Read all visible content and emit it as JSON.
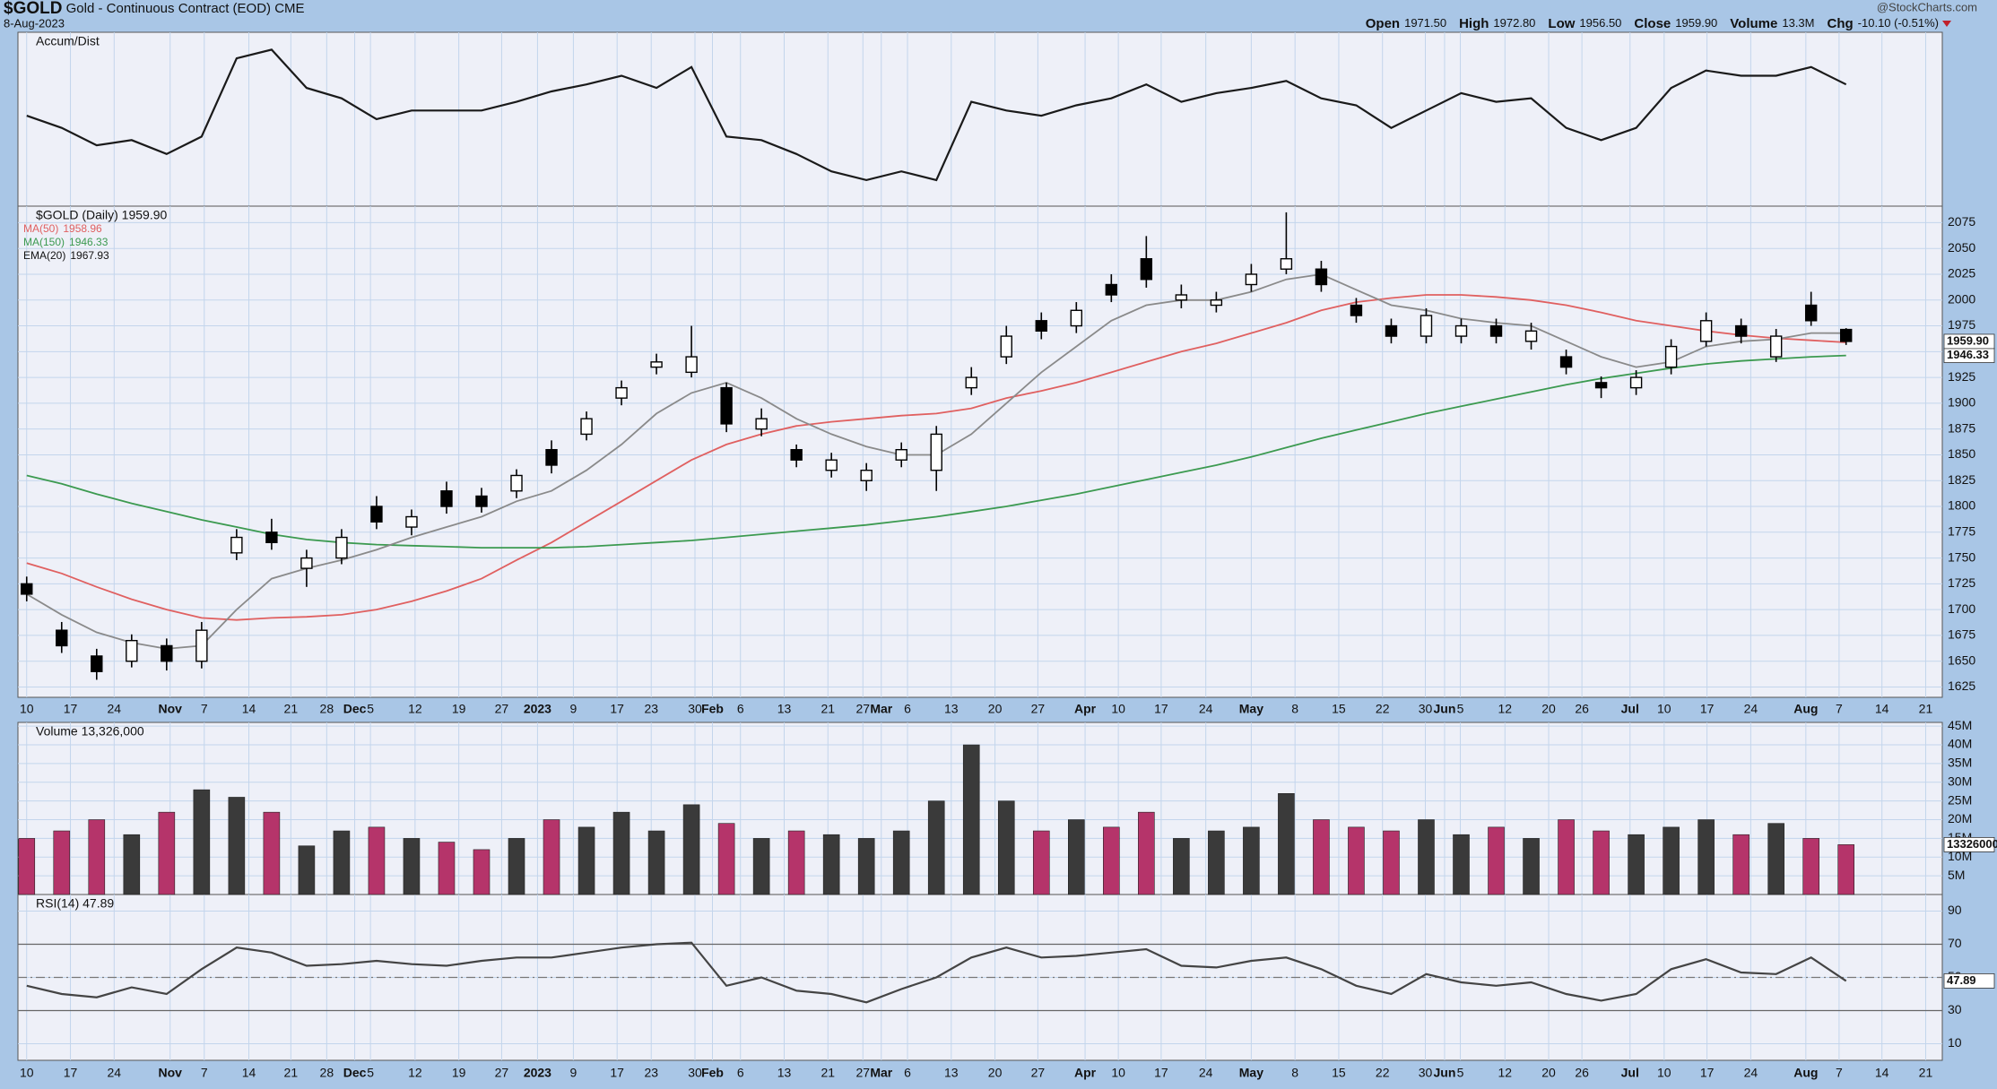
{
  "header": {
    "symbol": "$GOLD",
    "name": "Gold - Continuous Contract (EOD)",
    "exchange": "CME",
    "date": "8-Aug-2023",
    "stats": [
      {
        "label": "Open",
        "value": "1971.50"
      },
      {
        "label": "High",
        "value": "1972.80"
      },
      {
        "label": "Low",
        "value": "1956.50"
      },
      {
        "label": "Close",
        "value": "1959.90"
      },
      {
        "label": "Volume",
        "value": "13.3M"
      },
      {
        "label": "Chg",
        "value": "-10.10 (-0.51%)"
      }
    ],
    "source": "@StockCharts.com"
  },
  "chart_data": [
    {
      "type": "line",
      "title": "Accum/Dist",
      "color": "#1a1a1a",
      "ylim": [
        0,
        100
      ],
      "values": [
        52,
        45,
        35,
        38,
        30,
        40,
        85,
        90,
        68,
        62,
        50,
        55,
        55,
        55,
        60,
        66,
        70,
        75,
        68,
        80,
        40,
        38,
        30,
        20,
        15,
        20,
        15,
        60,
        55,
        52,
        58,
        62,
        70,
        60,
        65,
        68,
        72,
        62,
        58,
        45,
        55,
        65,
        60,
        62,
        45,
        38,
        45,
        68,
        78,
        75,
        75,
        80,
        70
      ]
    },
    {
      "type": "candlestick",
      "title": "$GOLD (Daily) 1959.90",
      "last_label": "1959.90",
      "x": [
        1,
        5,
        9,
        13,
        17,
        21,
        25,
        29,
        33,
        37,
        41,
        45,
        49,
        53,
        57,
        61,
        65,
        69,
        73,
        77,
        81,
        85,
        89,
        93,
        97,
        101,
        105,
        109,
        113,
        117,
        121,
        125,
        129,
        133,
        137,
        141,
        145,
        149,
        153,
        157,
        161,
        165,
        169,
        173,
        177,
        181,
        185,
        189,
        193,
        197,
        201,
        205,
        209
      ],
      "open": [
        1725,
        1680,
        1655,
        1650,
        1665,
        1650,
        1755,
        1775,
        1740,
        1750,
        1800,
        1780,
        1815,
        1810,
        1815,
        1855,
        1870,
        1905,
        1935,
        1930,
        1915,
        1875,
        1855,
        1835,
        1825,
        1845,
        1835,
        1915,
        1945,
        1980,
        1975,
        2015,
        2040,
        2000,
        1995,
        2015,
        2030,
        2030,
        1995,
        1975,
        1965,
        1965,
        1975,
        1960,
        1945,
        1920,
        1915,
        1935,
        1960,
        1975,
        1945,
        1995,
        1971.5
      ],
      "high": [
        1732,
        1688,
        1662,
        1676,
        1672,
        1688,
        1778,
        1788,
        1758,
        1778,
        1810,
        1797,
        1824,
        1818,
        1836,
        1864,
        1892,
        1922,
        1948,
        1975,
        1920,
        1895,
        1860,
        1852,
        1842,
        1862,
        1878,
        1935,
        1975,
        1988,
        1998,
        2025,
        2062,
        2015,
        2008,
        2035,
        2085,
        2038,
        2002,
        1982,
        1992,
        1982,
        1982,
        1978,
        1952,
        1926,
        1932,
        1962,
        1988,
        1982,
        1972,
        2008,
        1972.8
      ],
      "low": [
        1708,
        1658,
        1632,
        1644,
        1641,
        1643,
        1748,
        1758,
        1722,
        1744,
        1778,
        1772,
        1793,
        1794,
        1808,
        1832,
        1864,
        1898,
        1928,
        1925,
        1872,
        1868,
        1838,
        1828,
        1815,
        1838,
        1815,
        1908,
        1938,
        1962,
        1968,
        1998,
        2012,
        1992,
        1988,
        2008,
        2025,
        2008,
        1978,
        1958,
        1958,
        1958,
        1958,
        1952,
        1928,
        1905,
        1908,
        1928,
        1955,
        1958,
        1940,
        1975,
        1956.5
      ],
      "close": [
        1715,
        1665,
        1640,
        1670,
        1650,
        1680,
        1770,
        1765,
        1750,
        1770,
        1785,
        1790,
        1800,
        1800,
        1830,
        1840,
        1885,
        1915,
        1940,
        1945,
        1880,
        1885,
        1845,
        1845,
        1835,
        1855,
        1870,
        1925,
        1965,
        1970,
        1990,
        2005,
        2020,
        2005,
        2000,
        2025,
        2040,
        2015,
        1985,
        1965,
        1985,
        1975,
        1965,
        1970,
        1935,
        1915,
        1925,
        1955,
        1980,
        1965,
        1965,
        1980,
        1959.9
      ],
      "series": [
        {
          "name": "MA(50)",
          "color": "#e06060",
          "values": [
            1745,
            1735,
            1722,
            1710,
            1700,
            1692,
            1690,
            1692,
            1693,
            1695,
            1700,
            1708,
            1718,
            1730,
            1748,
            1765,
            1785,
            1805,
            1825,
            1845,
            1860,
            1870,
            1878,
            1882,
            1885,
            1888,
            1890,
            1895,
            1905,
            1912,
            1920,
            1930,
            1940,
            1950,
            1958,
            1968,
            1978,
            1990,
            1998,
            2002,
            2005,
            2005,
            2003,
            2000,
            1995,
            1988,
            1980,
            1975,
            1970,
            1966,
            1963,
            1961,
            1958.96
          ]
        },
        {
          "name": "MA(150)",
          "color": "#3c9a50",
          "values": [
            1830,
            1822,
            1812,
            1803,
            1795,
            1787,
            1780,
            1773,
            1768,
            1765,
            1763,
            1762,
            1761,
            1760,
            1760,
            1760,
            1761,
            1763,
            1765,
            1767,
            1770,
            1773,
            1776,
            1779,
            1782,
            1786,
            1790,
            1795,
            1800,
            1806,
            1812,
            1819,
            1826,
            1833,
            1840,
            1848,
            1857,
            1866,
            1874,
            1882,
            1890,
            1897,
            1904,
            1911,
            1918,
            1924,
            1929,
            1934,
            1938,
            1941,
            1943,
            1945,
            1946.33
          ]
        },
        {
          "name": "EMA(20)",
          "color": "#8a8a8a",
          "values": [
            1715,
            1695,
            1678,
            1668,
            1662,
            1665,
            1700,
            1730,
            1740,
            1748,
            1758,
            1770,
            1780,
            1790,
            1805,
            1815,
            1835,
            1860,
            1890,
            1910,
            1920,
            1905,
            1885,
            1870,
            1858,
            1850,
            1850,
            1870,
            1900,
            1930,
            1955,
            1980,
            1995,
            2000,
            2000,
            2008,
            2020,
            2025,
            2010,
            1995,
            1990,
            1982,
            1978,
            1975,
            1960,
            1945,
            1935,
            1940,
            1955,
            1960,
            1962,
            1968,
            1967.93
          ]
        }
      ],
      "xlim": [
        0,
        220
      ],
      "xticks": [
        {
          "value": 1,
          "label": "10"
        },
        {
          "value": 6,
          "label": "17"
        },
        {
          "value": 11,
          "label": "24"
        },
        {
          "value": 17.4,
          "label": "Nov"
        },
        {
          "value": 21.3,
          "label": "7"
        },
        {
          "value": 26.4,
          "label": "14"
        },
        {
          "value": 31.2,
          "label": "21"
        },
        {
          "value": 35.3,
          "label": "28"
        },
        {
          "value": 38.5,
          "label": "Dec"
        },
        {
          "value": 40.3,
          "label": "5"
        },
        {
          "value": 45.4,
          "label": "12"
        },
        {
          "value": 50.4,
          "label": "19"
        },
        {
          "value": 55.3,
          "label": "27"
        },
        {
          "value": 59.4,
          "label": "2023"
        },
        {
          "value": 63.5,
          "label": "9"
        },
        {
          "value": 68.5,
          "label": "17"
        },
        {
          "value": 72.4,
          "label": "23"
        },
        {
          "value": 77.4,
          "label": "30"
        },
        {
          "value": 79.4,
          "label": "Feb"
        },
        {
          "value": 82.6,
          "label": "6"
        },
        {
          "value": 87.6,
          "label": "13"
        },
        {
          "value": 92.6,
          "label": "21"
        },
        {
          "value": 96.6,
          "label": "27"
        },
        {
          "value": 98.7,
          "label": "Mar"
        },
        {
          "value": 101.7,
          "label": "6"
        },
        {
          "value": 106.7,
          "label": "13"
        },
        {
          "value": 111.7,
          "label": "20"
        },
        {
          "value": 116.6,
          "label": "27"
        },
        {
          "value": 122,
          "label": "Apr"
        },
        {
          "value": 125.8,
          "label": "10"
        },
        {
          "value": 130.7,
          "label": "17"
        },
        {
          "value": 135.8,
          "label": "24"
        },
        {
          "value": 141,
          "label": "May"
        },
        {
          "value": 146,
          "label": "8"
        },
        {
          "value": 151,
          "label": "15"
        },
        {
          "value": 156,
          "label": "22"
        },
        {
          "value": 160.9,
          "label": "30"
        },
        {
          "value": 163.1,
          "label": "Jun"
        },
        {
          "value": 164.9,
          "label": "5"
        },
        {
          "value": 170,
          "label": "12"
        },
        {
          "value": 175,
          "label": "20"
        },
        {
          "value": 178.8,
          "label": "26"
        },
        {
          "value": 184.3,
          "label": "Jul"
        },
        {
          "value": 188.2,
          "label": "10"
        },
        {
          "value": 193.1,
          "label": "17"
        },
        {
          "value": 198.1,
          "label": "24"
        },
        {
          "value": 204.4,
          "label": "Aug"
        },
        {
          "value": 208.2,
          "label": "7"
        },
        {
          "value": 213.1,
          "label": "14"
        },
        {
          "value": 218.1,
          "label": "21"
        }
      ],
      "ylim": [
        1615,
        2091
      ],
      "yticks": [
        1625,
        1650,
        1675,
        1700,
        1725,
        1750,
        1775,
        1800,
        1825,
        1850,
        1875,
        1900,
        1925,
        1950,
        1975,
        2000,
        2025,
        2050,
        2075
      ],
      "grid": true
    },
    {
      "type": "bar",
      "title": "Volume 13,326,000",
      "last_label": "13326000",
      "up_color": "#3a3a3a",
      "down_color": "#b5346a",
      "values": [
        15,
        17,
        20,
        16,
        22,
        28,
        26,
        22,
        13,
        17,
        18,
        15,
        14,
        12,
        15,
        20,
        18,
        22,
        17,
        24,
        19,
        15,
        17,
        16,
        15,
        17,
        25,
        40,
        25,
        17,
        20,
        18,
        22,
        15,
        17,
        18,
        27,
        20,
        18,
        17,
        20,
        16,
        18,
        15,
        20,
        17,
        16,
        18,
        20,
        16,
        19,
        15,
        13.326
      ],
      "ylim": [
        0,
        46
      ],
      "yticks": [
        {
          "value": 5,
          "label": "5M"
        },
        {
          "value": 10,
          "label": "10M"
        },
        {
          "value": 15,
          "label": "15M"
        },
        {
          "value": 20,
          "label": "20M"
        },
        {
          "value": 25,
          "label": "25M"
        },
        {
          "value": 30,
          "label": "30M"
        },
        {
          "value": 35,
          "label": "35M"
        },
        {
          "value": 40,
          "label": "40M"
        },
        {
          "value": 45,
          "label": "45M"
        }
      ]
    },
    {
      "type": "line",
      "title": "RSI(14) 47.89",
      "color": "#444444",
      "values": [
        45,
        40,
        38,
        44,
        40,
        55,
        68,
        65,
        57,
        58,
        60,
        58,
        57,
        60,
        62,
        62,
        65,
        68,
        70,
        71,
        45,
        50,
        42,
        40,
        35,
        43,
        50,
        62,
        68,
        62,
        63,
        65,
        67,
        57,
        56,
        60,
        62,
        55,
        45,
        40,
        52,
        47,
        45,
        47,
        40,
        36,
        40,
        55,
        61,
        53,
        52,
        62,
        47.89
      ],
      "ylim": [
        0,
        100
      ],
      "yticks": [
        10,
        30,
        50,
        70,
        90
      ],
      "hlines": [
        30,
        70
      ],
      "dashed_hlines": [
        50
      ]
    }
  ]
}
